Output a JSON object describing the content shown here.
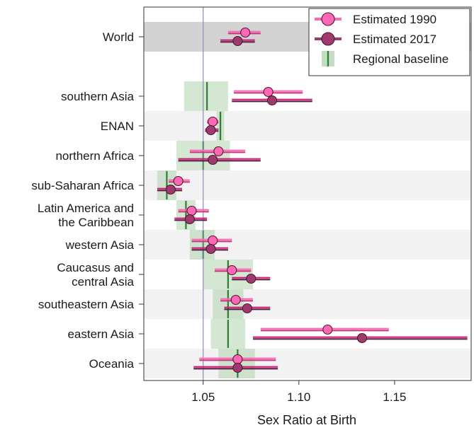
{
  "chart_data": {
    "type": "scatter",
    "xlabel": "Sex Ratio at Birth",
    "xlim": [
      1.019,
      1.19
    ],
    "x_ticks": [
      "1.05",
      "1.10",
      "1.15"
    ],
    "reference_line_x": 1.05,
    "categories": [
      [
        "World"
      ],
      [
        "southern Asia"
      ],
      [
        "ENAN"
      ],
      [
        "northern Africa"
      ],
      [
        "sub-Saharan Africa"
      ],
      [
        "Latin America and",
        "the Caribbean"
      ],
      [
        "western Asia"
      ],
      [
        "Caucasus and",
        "central Asia"
      ],
      [
        "southeastern Asia"
      ],
      [
        "eastern Asia"
      ],
      [
        "Oceania"
      ]
    ],
    "series": [
      {
        "name": "Estimated 1990",
        "color": "#ff66b3",
        "points": [
          {
            "x": 1.072,
            "lo": 1.063,
            "hi": 1.08
          },
          {
            "x": 1.084,
            "lo": 1.066,
            "hi": 1.102
          },
          {
            "x": 1.055,
            "lo": 1.052,
            "hi": 1.058
          },
          {
            "x": 1.058,
            "lo": 1.043,
            "hi": 1.072
          },
          {
            "x": 1.037,
            "lo": 1.032,
            "hi": 1.043
          },
          {
            "x": 1.044,
            "lo": 1.037,
            "hi": 1.053
          },
          {
            "x": 1.055,
            "lo": 1.044,
            "hi": 1.065
          },
          {
            "x": 1.065,
            "lo": 1.056,
            "hi": 1.075
          },
          {
            "x": 1.067,
            "lo": 1.059,
            "hi": 1.076
          },
          {
            "x": 1.115,
            "lo": 1.08,
            "hi": 1.147
          },
          {
            "x": 1.068,
            "lo": 1.048,
            "hi": 1.088
          }
        ]
      },
      {
        "name": "Estimated 2017",
        "color": "#9e3a6e",
        "points": [
          {
            "x": 1.068,
            "lo": 1.059,
            "hi": 1.077
          },
          {
            "x": 1.086,
            "lo": 1.065,
            "hi": 1.107
          },
          {
            "x": 1.054,
            "lo": 1.051,
            "hi": 1.058
          },
          {
            "x": 1.055,
            "lo": 1.037,
            "hi": 1.08
          },
          {
            "x": 1.033,
            "lo": 1.026,
            "hi": 1.039
          },
          {
            "x": 1.043,
            "lo": 1.035,
            "hi": 1.052
          },
          {
            "x": 1.054,
            "lo": 1.044,
            "hi": 1.063
          },
          {
            "x": 1.075,
            "lo": 1.065,
            "hi": 1.085
          },
          {
            "x": 1.073,
            "lo": 1.061,
            "hi": 1.085
          },
          {
            "x": 1.133,
            "lo": 1.076,
            "hi": 1.188
          },
          {
            "x": 1.068,
            "lo": 1.045,
            "hi": 1.089
          }
        ]
      },
      {
        "name": "Regional baseline",
        "color": "#2e7d32",
        "band_color": "#a8cfa8",
        "points": [
          null,
          {
            "x": 1.052,
            "lo": 1.04,
            "hi": 1.063
          },
          {
            "x": 1.059,
            "lo": 1.057,
            "hi": 1.061
          },
          {
            "x": 1.05,
            "lo": 1.036,
            "hi": 1.064
          },
          {
            "x": 1.031,
            "lo": 1.026,
            "hi": 1.036
          },
          {
            "x": 1.041,
            "lo": 1.036,
            "hi": 1.046
          },
          {
            "x": 1.05,
            "lo": 1.043,
            "hi": 1.056
          },
          {
            "x": 1.063,
            "lo": 1.05,
            "hi": 1.076
          },
          {
            "x": 1.063,
            "lo": 1.055,
            "hi": 1.071
          },
          {
            "x": 1.063,
            "lo": 1.054,
            "hi": 1.072
          },
          {
            "x": 1.068,
            "lo": 1.058,
            "hi": 1.077
          }
        ]
      }
    ],
    "legend": "top-right"
  }
}
